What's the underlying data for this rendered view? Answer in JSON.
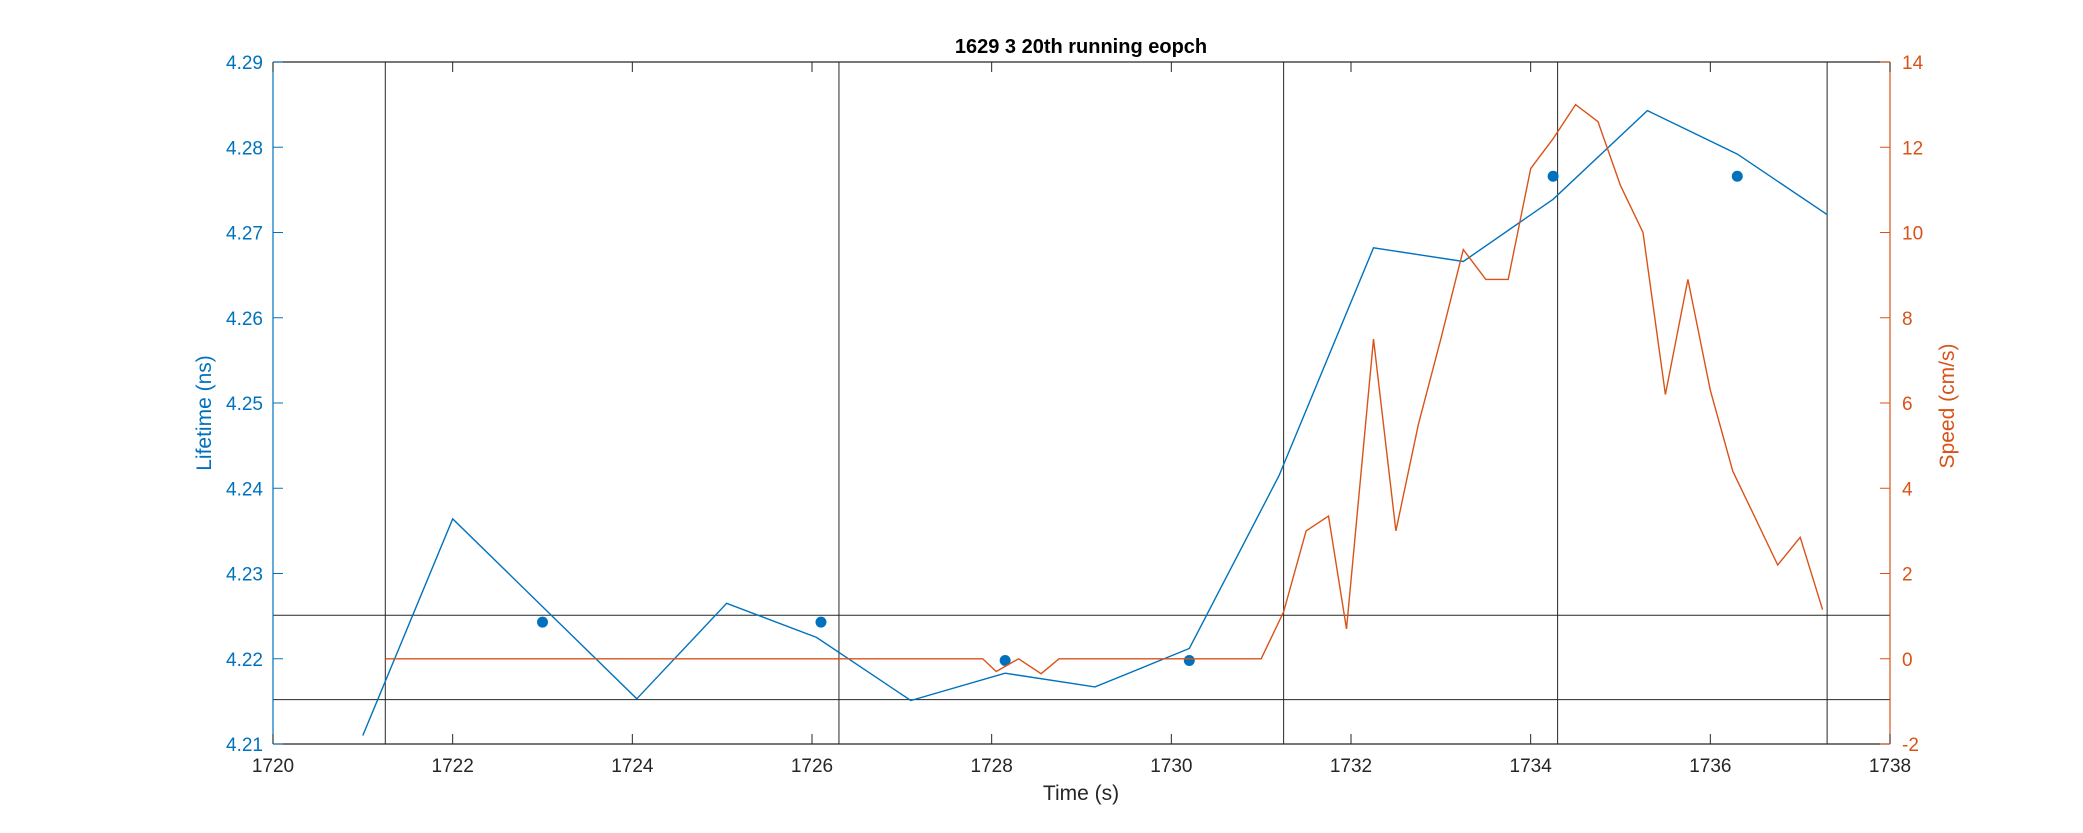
{
  "chart_data": {
    "type": "line",
    "title": "1629 3 20th running eopch",
    "xlabel": "Time (s)",
    "ylabel_left": "Lifetime (ns)",
    "ylabel_right": "Speed (cm/s)",
    "xlim": [
      1720,
      1738
    ],
    "ylim_left": [
      4.21,
      4.29
    ],
    "ylim_right": [
      -2,
      14
    ],
    "xticks": [
      "1720",
      "1722",
      "1724",
      "1726",
      "1728",
      "1730",
      "1732",
      "1734",
      "1736",
      "1738"
    ],
    "yticks_left": [
      "4.21",
      "4.22",
      "4.23",
      "4.24",
      "4.25",
      "4.26",
      "4.27",
      "4.28",
      "4.29"
    ],
    "yticks_right": [
      "-2",
      "0",
      "2",
      "4",
      "6",
      "8",
      "10",
      "12",
      "14"
    ],
    "colors": {
      "lifetime": "#0072BD",
      "speed": "#D95319",
      "reference": "#262626"
    },
    "series": [
      {
        "axis": "left",
        "style": "line",
        "x": [
          1721.0,
          1722.0,
          1724.05,
          1725.05,
          1726.05,
          1727.1,
          1728.15,
          1729.15,
          1730.2,
          1731.2,
          1732.25,
          1733.25,
          1734.25,
          1735.3,
          1736.3,
          1737.3
        ],
        "values": [
          4.211,
          4.2364,
          4.2153,
          4.2265,
          4.2225,
          4.2151,
          4.2183,
          4.2167,
          4.2212,
          4.2415,
          4.2682,
          4.2666,
          4.2739,
          4.2843,
          4.2792,
          4.2721
        ]
      },
      {
        "axis": "left",
        "style": "markers",
        "x": [
          1723.0,
          1726.1,
          1728.15,
          1730.2,
          1734.25,
          1736.3
        ],
        "values": [
          4.2243,
          4.2243,
          4.2198,
          4.2198,
          4.2766,
          4.2766
        ]
      },
      {
        "axis": "right",
        "style": "line",
        "x": [
          1721.25,
          1721.5,
          1722.0,
          1722.5,
          1723.0,
          1723.5,
          1724.0,
          1724.5,
          1725.0,
          1725.5,
          1726.0,
          1726.5,
          1727.0,
          1727.5,
          1727.9,
          1728.05,
          1728.3,
          1728.55,
          1728.75,
          1729.0,
          1729.5,
          1730.0,
          1730.5,
          1731.0,
          1731.25,
          1731.5,
          1731.75,
          1731.95,
          1732.25,
          1732.5,
          1732.75,
          1733.0,
          1733.25,
          1733.5,
          1733.75,
          1734.0,
          1734.25,
          1734.5,
          1734.75,
          1735.0,
          1735.25,
          1735.5,
          1735.75,
          1736.0,
          1736.25,
          1736.5,
          1736.75,
          1737.0,
          1737.25
        ],
        "values": [
          0,
          0,
          0,
          0,
          0,
          0,
          0,
          0,
          0,
          0,
          0,
          0,
          0,
          0,
          0,
          -0.3,
          0,
          -0.35,
          0,
          0,
          0,
          0,
          0,
          0,
          1.1,
          3.0,
          3.35,
          0.7,
          7.5,
          3.0,
          5.5,
          7.5,
          9.6,
          8.9,
          8.9,
          11.5,
          12.2,
          13.0,
          12.6,
          11.1,
          10.0,
          6.2,
          8.9,
          6.3,
          4.4,
          3.3,
          2.2,
          2.85,
          1.15
        ]
      }
    ],
    "reference_lines": {
      "vertical_x": [
        1721.25,
        1726.3,
        1731.25,
        1734.3,
        1737.3
      ],
      "horizontal_left": [
        4.2251,
        4.2152
      ]
    },
    "grid": "off",
    "legend": "none"
  }
}
